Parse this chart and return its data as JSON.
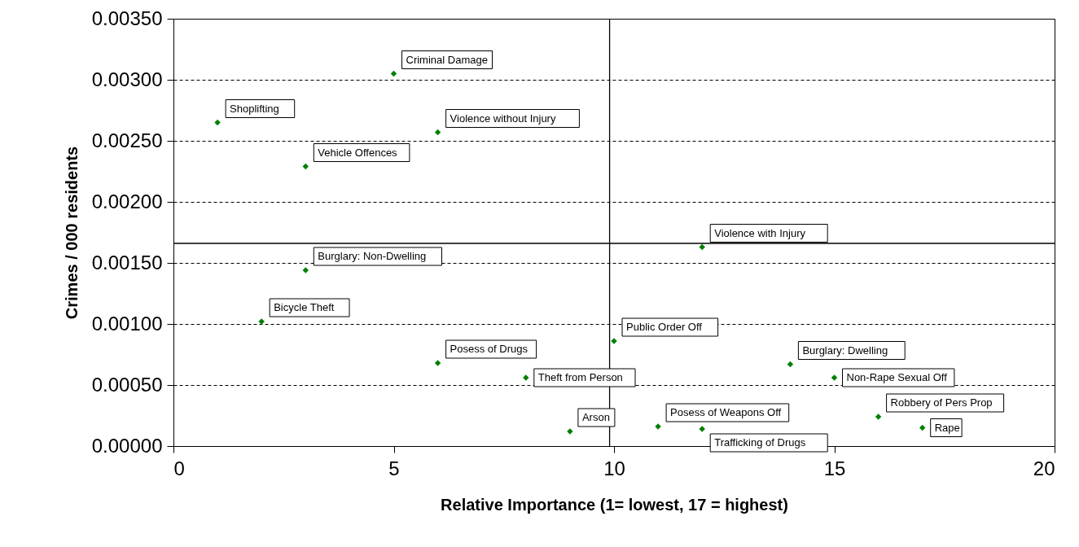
{
  "chart_data": {
    "type": "scatter",
    "xlabel": "Relative Importance (1= lowest, 17 = highest)",
    "ylabel": "Crimes / 000 residents",
    "x": [
      1,
      5,
      6,
      3,
      12,
      3,
      2,
      6,
      8,
      9,
      10,
      14,
      15,
      11,
      12,
      16,
      17
    ],
    "series": [
      {
        "color": "#008000",
        "values": [
          0.00265,
          0.00305,
          0.00257,
          0.00229,
          0.00163,
          0.00144,
          0.00102,
          0.00068,
          0.00056,
          0.00012,
          0.00086,
          0.00067,
          0.00056,
          0.00016,
          0.00014,
          0.00024,
          0.00015
        ]
      }
    ],
    "marker": "diamond",
    "grid": "y",
    "xlim": [
      0,
      20
    ],
    "xticks": [
      0,
      5,
      10,
      15,
      20
    ],
    "ylim": [
      0,
      0.0035
    ],
    "yticks": [
      {
        "value": 0,
        "label": "0.00000"
      },
      {
        "value": 0.0005,
        "label": "0.00050"
      },
      {
        "value": 0.001,
        "label": "0.00100"
      },
      {
        "value": 0.0015,
        "label": "0.00150"
      },
      {
        "value": 0.002,
        "label": "0.00200"
      },
      {
        "value": 0.0025,
        "label": "0.00250"
      },
      {
        "value": 0.003,
        "label": "0.00300"
      },
      {
        "value": 0.0035,
        "label": "0.00350"
      }
    ],
    "ref_lines": [
      {
        "axis": "x",
        "value": 9.9,
        "color": "#000000"
      },
      {
        "axis": "y",
        "value": 0.00166,
        "color": "#000000"
      }
    ],
    "annotations": [
      {
        "text": "Shoplifting",
        "x": 1,
        "y": 0.00265
      },
      {
        "text": "Criminal Damage",
        "x": 5,
        "y": 0.00305
      },
      {
        "text": "Violence without Injury",
        "x": 6,
        "y": 0.00257
      },
      {
        "text": "Vehicle Offences",
        "x": 3,
        "y": 0.00229
      },
      {
        "text": "Violence with Injury",
        "x": 12,
        "y": 0.00163
      },
      {
        "text": "Burglary: Non-Dwelling",
        "x": 3,
        "y": 0.00144
      },
      {
        "text": "Bicycle Theft",
        "x": 2,
        "y": 0.00102
      },
      {
        "text": "Posess of Drugs",
        "x": 6,
        "y": 0.00068
      },
      {
        "text": "Theft from Person",
        "x": 8,
        "y": 0.00056
      },
      {
        "text": "Arson",
        "x": 9,
        "y": 0.00012
      },
      {
        "text": "Public Order Off",
        "x": 10,
        "y": 0.00086
      },
      {
        "text": "Burglary: Dwelling",
        "x": 14,
        "y": 0.00067
      },
      {
        "text": "Non-Rape Sexual Off",
        "x": 15,
        "y": 0.00056
      },
      {
        "text": "Posess of Weapons Off",
        "x": 11,
        "y": 0.00016
      },
      {
        "text": "Trafficking of Drugs",
        "x": 12,
        "y": 0.00014
      },
      {
        "text": "Robbery of Pers Prop",
        "x": 16,
        "y": 0.00024
      },
      {
        "text": "Rape",
        "x": 17,
        "y": 0.00015
      }
    ]
  }
}
